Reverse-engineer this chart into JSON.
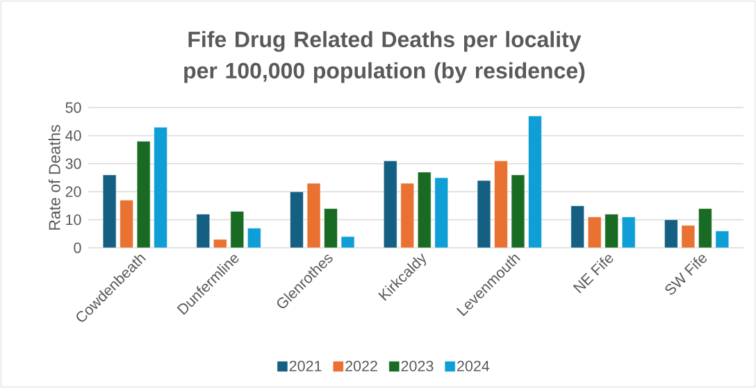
{
  "chart_data": {
    "type": "bar",
    "title": "Fife Drug Related Deaths per locality per 100,000 population (by residence)",
    "ylabel": "Rate of Deaths",
    "categories": [
      "Cowdenbeath",
      "Dunfermline",
      "Glenrothes",
      "Kirkcaldy",
      "Levenmouth",
      "NE Fife",
      "SW Fife"
    ],
    "series": [
      {
        "name": "2021",
        "color": "#156082",
        "values": [
          26,
          12,
          20,
          31,
          24,
          15,
          10
        ]
      },
      {
        "name": "2022",
        "color": "#e97132",
        "values": [
          17,
          3,
          23,
          23,
          31,
          11,
          8
        ]
      },
      {
        "name": "2023",
        "color": "#196b24",
        "values": [
          38,
          13,
          14,
          27,
          26,
          12,
          14
        ]
      },
      {
        "name": "2024",
        "color": "#0f9ed5",
        "values": [
          43,
          7,
          4,
          25,
          47,
          11,
          6
        ]
      }
    ],
    "ylim": [
      0,
      50
    ],
    "yticks": [
      0,
      10,
      20,
      30,
      40,
      50
    ],
    "grid": "y",
    "legend": "bottom"
  }
}
